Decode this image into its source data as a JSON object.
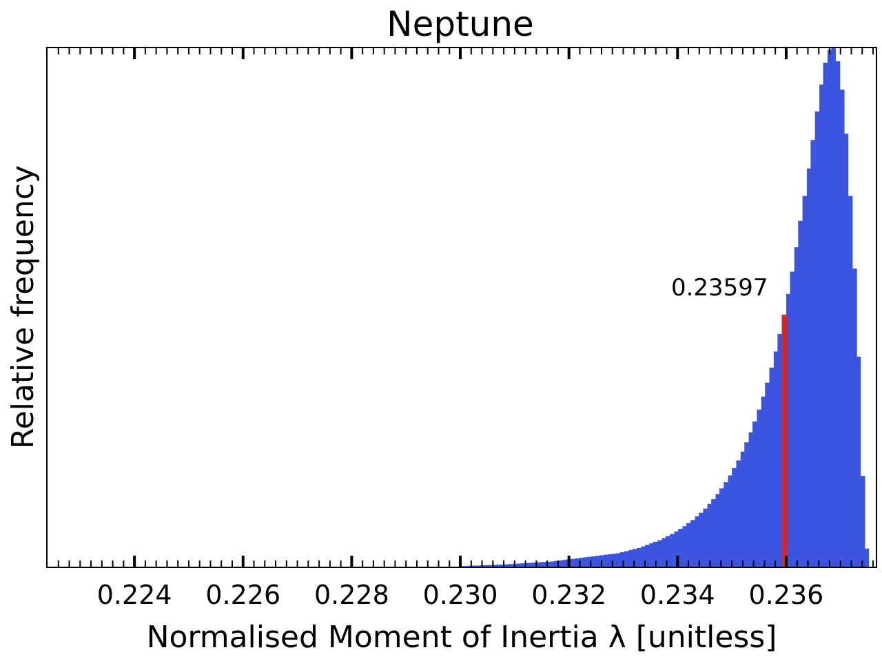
{
  "chart_data": {
    "type": "bar",
    "title": "Neptune",
    "xlabel": "Normalised Moment of Inertia λ [unitless]",
    "ylabel": "Relative frequency",
    "xlim": [
      0.2224,
      0.23765
    ],
    "ylim": [
      0,
      1.0
    ],
    "x_ticks": [
      "0.224",
      "0.226",
      "0.228",
      "0.230",
      "0.232",
      "0.234",
      "0.236"
    ],
    "y_ticks": [],
    "grid": false,
    "legend": "none",
    "bin_width": 7.61e-05,
    "bin_starts": [
      0.22997,
      0.23005,
      0.23012,
      0.2302,
      0.23027,
      0.23035,
      0.23043,
      0.2305,
      0.23058,
      0.23066,
      0.23073,
      0.23081,
      0.23088,
      0.23096,
      0.23104,
      0.23111,
      0.23119,
      0.23127,
      0.23134,
      0.23142,
      0.23149,
      0.23157,
      0.23165,
      0.23172,
      0.2318,
      0.23188,
      0.23195,
      0.23203,
      0.23211,
      0.23218,
      0.23226,
      0.23233,
      0.23241,
      0.23249,
      0.23256,
      0.23264,
      0.23272,
      0.23279,
      0.23287,
      0.23294,
      0.23302,
      0.2331,
      0.23317,
      0.23325,
      0.23333,
      0.2334,
      0.23348,
      0.23355,
      0.23363,
      0.23371,
      0.23378,
      0.23386,
      0.23394,
      0.23401,
      0.23409,
      0.23416,
      0.23424,
      0.23432,
      0.23439,
      0.23447,
      0.23455,
      0.23462,
      0.2347,
      0.23477,
      0.23485,
      0.23493,
      0.235,
      0.23508,
      0.23516,
      0.23523,
      0.23531,
      0.23538,
      0.23546,
      0.23554,
      0.23561,
      0.23569,
      0.23577,
      0.23584,
      0.23592,
      0.236,
      0.23607,
      0.23615,
      0.23622,
      0.2363,
      0.23638,
      0.23645,
      0.23653,
      0.23661,
      0.23668,
      0.23676,
      0.23683,
      0.23691,
      0.23699,
      0.23706,
      0.23714,
      0.23722,
      0.23729,
      0.23737,
      0.23744
    ],
    "values": [
      0.001,
      0.001,
      0.0015,
      0.002,
      0.002,
      0.0025,
      0.003,
      0.003,
      0.0035,
      0.004,
      0.004,
      0.0045,
      0.005,
      0.0055,
      0.006,
      0.0065,
      0.007,
      0.0075,
      0.008,
      0.0085,
      0.009,
      0.0095,
      0.01,
      0.011,
      0.012,
      0.013,
      0.014,
      0.015,
      0.016,
      0.017,
      0.018,
      0.019,
      0.02,
      0.021,
      0.022,
      0.023,
      0.024,
      0.025,
      0.026,
      0.028,
      0.03,
      0.032,
      0.034,
      0.036,
      0.039,
      0.042,
      0.045,
      0.048,
      0.051,
      0.055,
      0.059,
      0.063,
      0.068,
      0.073,
      0.078,
      0.084,
      0.09,
      0.097,
      0.104,
      0.112,
      0.121,
      0.13,
      0.14,
      0.151,
      0.163,
      0.176,
      0.19,
      0.205,
      0.222,
      0.24,
      0.259,
      0.28,
      0.303,
      0.328,
      0.355,
      0.384,
      0.415,
      0.449,
      0.486,
      0.526,
      0.569,
      0.616,
      0.667,
      0.715,
      0.768,
      0.823,
      0.878,
      0.93,
      0.972,
      0.997,
      1.0,
      0.975,
      0.92,
      0.835,
      0.715,
      0.575,
      0.405,
      0.175,
      0.035
    ],
    "highlight": {
      "x": 0.23597,
      "label": "0.23597",
      "color": "#d62728"
    },
    "bar_color": "#3b55df"
  }
}
